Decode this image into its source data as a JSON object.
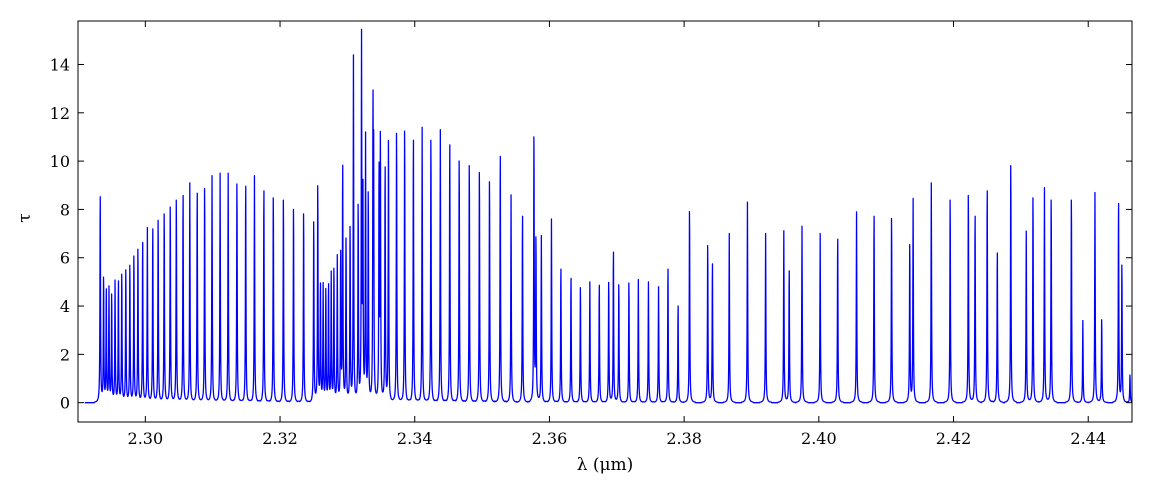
{
  "chart_data": {
    "type": "line",
    "title": "",
    "xlabel": "λ (μm)",
    "ylabel": "τ",
    "xlim": [
      2.29,
      2.4465
    ],
    "ylim": [
      -0.8,
      15.8
    ],
    "grid": false,
    "legend": "none",
    "series": [
      {
        "color": "#0000ff",
        "peaks": [
          [
            2.2933,
            8.9
          ],
          [
            2.2938,
            5.3
          ],
          [
            2.2942,
            4.8
          ],
          [
            2.2946,
            4.7
          ],
          [
            2.295,
            4.6
          ],
          [
            2.2955,
            5.0
          ],
          [
            2.296,
            5.2
          ],
          [
            2.2965,
            5.5
          ],
          [
            2.2971,
            5.7
          ],
          [
            2.2977,
            5.9
          ],
          [
            2.2983,
            6.3
          ],
          [
            2.2989,
            6.6
          ],
          [
            2.2996,
            6.9
          ],
          [
            2.3003,
            7.2
          ],
          [
            2.3011,
            7.5
          ],
          [
            2.3019,
            7.9
          ],
          [
            2.3028,
            8.2
          ],
          [
            2.3037,
            8.5
          ],
          [
            2.3046,
            8.8
          ],
          [
            2.3056,
            9.0
          ],
          [
            2.3066,
            9.1
          ],
          [
            2.3077,
            9.1
          ],
          [
            2.3088,
            9.3
          ],
          [
            2.3099,
            9.4
          ],
          [
            2.3111,
            9.5
          ],
          [
            2.3123,
            9.5
          ],
          [
            2.3136,
            9.5
          ],
          [
            2.3149,
            9.4
          ],
          [
            2.3162,
            9.4
          ],
          [
            2.3176,
            9.2
          ],
          [
            2.319,
            8.9
          ],
          [
            2.3205,
            8.8
          ],
          [
            2.322,
            8.4
          ],
          [
            2.3235,
            8.2
          ],
          [
            2.325,
            7.8
          ],
          [
            2.3256,
            9.3
          ],
          [
            2.326,
            5.0
          ],
          [
            2.3264,
            4.8
          ],
          [
            2.3268,
            4.8
          ],
          [
            2.3272,
            5.0
          ],
          [
            2.3276,
            5.3
          ],
          [
            2.328,
            5.7
          ],
          [
            2.3285,
            6.0
          ],
          [
            2.329,
            6.3
          ],
          [
            2.3293,
            10.1
          ],
          [
            2.3298,
            7.0
          ],
          [
            2.3304,
            7.5
          ],
          [
            2.3309,
            14.3
          ],
          [
            2.3316,
            8.4
          ],
          [
            2.3323,
            8.8
          ],
          [
            2.3331,
            8.9
          ],
          [
            2.3339,
            9.3
          ],
          [
            2.3347,
            9.8
          ],
          [
            2.3356,
            10.1
          ],
          [
            2.3321,
            14.9
          ],
          [
            2.3327,
            10.9
          ],
          [
            2.3338,
            11.6
          ],
          [
            2.3349,
            11.2
          ],
          [
            2.3361,
            11.3
          ],
          [
            2.3373,
            11.7
          ],
          [
            2.3385,
            11.8
          ],
          [
            2.3398,
            11.4
          ],
          [
            2.3411,
            11.4
          ],
          [
            2.3424,
            11.4
          ],
          [
            2.3438,
            11.3
          ],
          [
            2.3452,
            11.2
          ],
          [
            2.3466,
            10.5
          ],
          [
            2.3481,
            10.3
          ],
          [
            2.3496,
            10.0
          ],
          [
            2.3511,
            9.6
          ],
          [
            2.3527,
            10.7
          ],
          [
            2.3543,
            8.6
          ],
          [
            2.356,
            8.1
          ],
          [
            2.3577,
            11.4
          ],
          [
            2.358,
            6.9
          ],
          [
            2.3588,
            6.9
          ],
          [
            2.3603,
            7.6
          ],
          [
            2.3617,
            5.8
          ],
          [
            2.3632,
            5.4
          ],
          [
            2.3646,
            5.0
          ],
          [
            2.366,
            5.0
          ],
          [
            2.3674,
            5.1
          ],
          [
            2.3688,
            5.2
          ],
          [
            2.3695,
            6.5
          ],
          [
            2.3703,
            5.1
          ],
          [
            2.3718,
            5.2
          ],
          [
            2.3732,
            5.1
          ],
          [
            2.3747,
            5.0
          ],
          [
            2.3762,
            4.8
          ],
          [
            2.3776,
            5.8
          ],
          [
            2.3791,
            4.2
          ],
          [
            2.3808,
            8.3
          ],
          [
            2.3835,
            6.8
          ],
          [
            2.3842,
            6.0
          ],
          [
            2.3867,
            7.0
          ],
          [
            2.3894,
            8.3
          ],
          [
            2.3921,
            7.0
          ],
          [
            2.3948,
            7.1
          ],
          [
            2.3956,
            5.7
          ],
          [
            2.3975,
            7.3
          ],
          [
            2.4002,
            7.0
          ],
          [
            2.4028,
            7.1
          ],
          [
            2.4056,
            7.9
          ],
          [
            2.4082,
            8.1
          ],
          [
            2.4108,
            8.0
          ],
          [
            2.4135,
            6.8
          ],
          [
            2.414,
            8.4
          ],
          [
            2.4167,
            9.1
          ],
          [
            2.4195,
            8.8
          ],
          [
            2.4222,
            9.0
          ],
          [
            2.4232,
            8.1
          ],
          [
            2.425,
            9.2
          ],
          [
            2.4265,
            6.5
          ],
          [
            2.4285,
            10.3
          ],
          [
            2.4308,
            7.1
          ],
          [
            2.4318,
            8.9
          ],
          [
            2.4335,
            8.9
          ],
          [
            2.4345,
            8.8
          ],
          [
            2.4375,
            8.8
          ],
          [
            2.4392,
            3.4
          ],
          [
            2.441,
            8.7
          ],
          [
            2.442,
            3.6
          ],
          [
            2.4445,
            8.6
          ],
          [
            2.445,
            5.9
          ],
          [
            2.4462,
            1.2
          ]
        ]
      }
    ],
    "ticks": {
      "x": [
        "2.30",
        "2.32",
        "2.34",
        "2.36",
        "2.38",
        "2.40",
        "2.42",
        "2.44"
      ],
      "y": [
        "0",
        "2",
        "4",
        "6",
        "8",
        "10",
        "12",
        "14"
      ]
    }
  }
}
